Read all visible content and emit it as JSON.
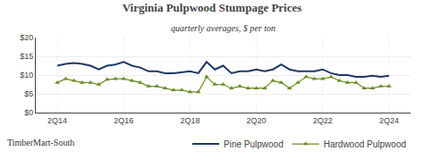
{
  "chart_data": {
    "type": "line",
    "title": "Virginia Pulpwood Stumpage Prices",
    "subtitle": "quarterly averages, $ per ton",
    "annotations": [
      "TimberMart-South"
    ],
    "categories": [
      "2Q14",
      null,
      null,
      null,
      null,
      null,
      null,
      null,
      "2Q16",
      null,
      null,
      null,
      null,
      null,
      null,
      null,
      "2Q18",
      null,
      null,
      null,
      null,
      null,
      null,
      null,
      "2Q20",
      null,
      null,
      null,
      null,
      null,
      null,
      null,
      "2Q22",
      null,
      null,
      null,
      null,
      null,
      null,
      null,
      "2Q24"
    ],
    "series": [
      {
        "name": "Pine Pulpwood",
        "color": "#1F3864",
        "values": [
          12.5,
          13.0,
          13.2,
          13.0,
          12.5,
          11.5,
          12.5,
          12.8,
          13.5,
          12.5,
          12.0,
          11.0,
          11.0,
          10.5,
          10.5,
          10.8,
          11.0,
          10.5,
          13.5,
          11.5,
          12.5,
          10.5,
          11.0,
          11.0,
          11.5,
          11.0,
          11.5,
          12.8,
          11.5,
          11.0,
          11.0,
          11.0,
          11.5,
          10.5,
          10.0,
          10.0,
          9.5,
          9.5,
          9.8,
          9.5,
          9.8
        ]
      },
      {
        "name": "Hardwood Pulpwood",
        "color": "#6B8E23",
        "marker": "triangle-up",
        "values": [
          8.0,
          9.0,
          8.5,
          8.0,
          8.0,
          7.5,
          8.8,
          9.0,
          9.0,
          8.5,
          8.0,
          7.0,
          7.0,
          6.5,
          6.0,
          6.0,
          5.5,
          5.5,
          9.5,
          7.5,
          7.5,
          6.5,
          7.0,
          6.5,
          6.5,
          6.5,
          8.5,
          8.0,
          6.5,
          8.0,
          9.5,
          9.0,
          9.0,
          9.5,
          8.5,
          8.0,
          8.0,
          6.5,
          6.5,
          7.0,
          7.0
        ]
      }
    ],
    "ylim": [
      0,
      20
    ],
    "yticks": [
      {
        "value": 0,
        "label": "$0"
      },
      {
        "value": 5,
        "label": "$5"
      },
      {
        "value": 10,
        "label": "$10"
      },
      {
        "value": 15,
        "label": "$15"
      },
      {
        "value": 20,
        "label": "$20"
      }
    ],
    "grid": true,
    "legend": "bottom"
  }
}
